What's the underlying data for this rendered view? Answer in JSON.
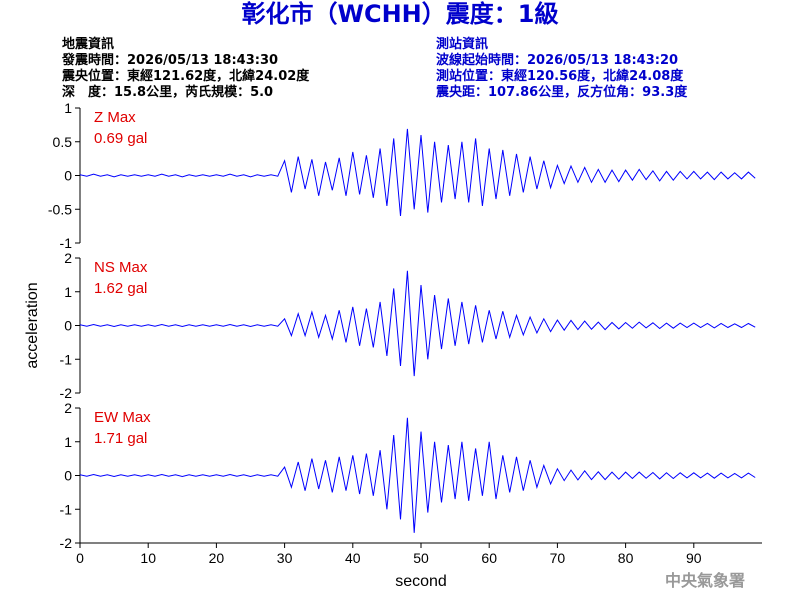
{
  "header": {
    "title": "彰化市（WCHH）震度：1級",
    "left": [
      "地震資訊",
      "發震時間：2026/05/13 18:43:30",
      "震央位置：東經121.62度，北緯24.02度",
      "深　度：15.8公里，芮氏規模：5.0"
    ],
    "right": [
      "測站資訊",
      "波線起始時間：2026/05/13 18:43:20",
      "測站位置：東經120.56度，北緯24.08度",
      "震央距：107.86公里，反方位角：93.3度"
    ]
  },
  "footer": "中央氣象署",
  "chart_data": [
    {
      "type": "line",
      "annotations": [
        "Z Max",
        "0.69 gal"
      ],
      "color": "#0000ff",
      "xlim": [
        0,
        100
      ],
      "ylim": [
        -1,
        1
      ],
      "yticks": [
        1,
        0.5,
        0,
        -0.5,
        -1
      ],
      "x": [
        0,
        1,
        2,
        3,
        4,
        5,
        6,
        7,
        8,
        9,
        10,
        11,
        12,
        13,
        14,
        15,
        16,
        17,
        18,
        19,
        20,
        21,
        22,
        23,
        24,
        25,
        26,
        27,
        28,
        29,
        30,
        31,
        32,
        33,
        34,
        35,
        36,
        37,
        38,
        39,
        40,
        41,
        42,
        43,
        44,
        45,
        46,
        47,
        48,
        49,
        50,
        51,
        52,
        53,
        54,
        55,
        56,
        57,
        58,
        59,
        60,
        61,
        62,
        63,
        64,
        65,
        66,
        67,
        68,
        69,
        70,
        71,
        72,
        73,
        74,
        75,
        76,
        77,
        78,
        79,
        80,
        81,
        82,
        83,
        84,
        85,
        86,
        87,
        88,
        89,
        90,
        91,
        92,
        93,
        94,
        95,
        96,
        97,
        98,
        99
      ],
      "values": [
        0.01,
        -0.01,
        0.02,
        -0.01,
        0.01,
        -0.02,
        0.01,
        -0.01,
        0.01,
        -0.01,
        0.01,
        -0.01,
        0.02,
        -0.01,
        0.01,
        -0.02,
        0.01,
        -0.01,
        0.01,
        -0.01,
        0.01,
        -0.01,
        0.02,
        -0.01,
        0.01,
        -0.02,
        0.01,
        -0.01,
        0.01,
        -0.01,
        0.22,
        -0.25,
        0.28,
        -0.2,
        0.24,
        -0.3,
        0.2,
        -0.22,
        0.26,
        -0.3,
        0.35,
        -0.28,
        0.3,
        -0.33,
        0.4,
        -0.45,
        0.55,
        -0.6,
        0.69,
        -0.5,
        0.6,
        -0.55,
        0.5,
        -0.4,
        0.45,
        -0.35,
        0.5,
        -0.4,
        0.55,
        -0.45,
        0.4,
        -0.35,
        0.38,
        -0.3,
        0.32,
        -0.25,
        0.28,
        -0.2,
        0.22,
        -0.18,
        0.15,
        -0.12,
        0.14,
        -0.1,
        0.12,
        -0.1,
        0.09,
        -0.1,
        0.08,
        -0.09,
        0.08,
        -0.07,
        0.09,
        -0.06,
        0.07,
        -0.08,
        0.06,
        -0.07,
        0.06,
        -0.05,
        0.06,
        -0.05,
        0.05,
        -0.06,
        0.05,
        -0.05,
        0.04,
        -0.05,
        0.05,
        -0.04
      ]
    },
    {
      "type": "line",
      "annotations": [
        "NS Max",
        "1.62 gal"
      ],
      "ylabel": "acceleration",
      "color": "#0000ff",
      "xlim": [
        0,
        100
      ],
      "ylim": [
        -2,
        2
      ],
      "yticks": [
        2,
        1,
        0,
        -1,
        -2
      ],
      "x": [
        0,
        1,
        2,
        3,
        4,
        5,
        6,
        7,
        8,
        9,
        10,
        11,
        12,
        13,
        14,
        15,
        16,
        17,
        18,
        19,
        20,
        21,
        22,
        23,
        24,
        25,
        26,
        27,
        28,
        29,
        30,
        31,
        32,
        33,
        34,
        35,
        36,
        37,
        38,
        39,
        40,
        41,
        42,
        43,
        44,
        45,
        46,
        47,
        48,
        49,
        50,
        51,
        52,
        53,
        54,
        55,
        56,
        57,
        58,
        59,
        60,
        61,
        62,
        63,
        64,
        65,
        66,
        67,
        68,
        69,
        70,
        71,
        72,
        73,
        74,
        75,
        76,
        77,
        78,
        79,
        80,
        81,
        82,
        83,
        84,
        85,
        86,
        87,
        88,
        89,
        90,
        91,
        92,
        93,
        94,
        95,
        96,
        97,
        98,
        99
      ],
      "values": [
        0.02,
        -0.02,
        0.03,
        -0.02,
        0.02,
        -0.03,
        0.02,
        -0.02,
        0.02,
        -0.02,
        0.02,
        -0.02,
        0.03,
        -0.02,
        0.02,
        -0.03,
        0.02,
        -0.02,
        0.02,
        -0.02,
        0.02,
        -0.02,
        0.03,
        -0.02,
        0.02,
        -0.03,
        0.02,
        -0.02,
        0.02,
        -0.02,
        0.2,
        -0.3,
        0.35,
        -0.3,
        0.4,
        -0.35,
        0.3,
        -0.4,
        0.45,
        -0.5,
        0.55,
        -0.6,
        0.5,
        -0.65,
        0.7,
        -0.9,
        1.1,
        -1.2,
        1.62,
        -1.5,
        1.2,
        -1.0,
        0.9,
        -0.7,
        0.8,
        -0.6,
        0.7,
        -0.55,
        0.6,
        -0.5,
        0.45,
        -0.4,
        0.42,
        -0.35,
        0.3,
        -0.28,
        0.25,
        -0.22,
        0.2,
        -0.18,
        0.16,
        -0.14,
        0.15,
        -0.12,
        0.13,
        -0.11,
        0.1,
        -0.12,
        0.09,
        -0.1,
        0.09,
        -0.08,
        0.1,
        -0.07,
        0.08,
        -0.09,
        0.07,
        -0.08,
        0.07,
        -0.06,
        0.07,
        -0.06,
        0.06,
        -0.07,
        0.06,
        -0.06,
        0.05,
        -0.06,
        0.06,
        -0.05
      ]
    },
    {
      "type": "line",
      "annotations": [
        "EW Max",
        "1.71 gal"
      ],
      "xlabel": "second",
      "color": "#0000ff",
      "xlim": [
        0,
        100
      ],
      "ylim": [
        -2,
        2
      ],
      "yticks": [
        2,
        1,
        0,
        -1,
        -2
      ],
      "xticks": [
        0,
        10,
        20,
        30,
        40,
        50,
        60,
        70,
        80,
        90
      ],
      "x": [
        0,
        1,
        2,
        3,
        4,
        5,
        6,
        7,
        8,
        9,
        10,
        11,
        12,
        13,
        14,
        15,
        16,
        17,
        18,
        19,
        20,
        21,
        22,
        23,
        24,
        25,
        26,
        27,
        28,
        29,
        30,
        31,
        32,
        33,
        34,
        35,
        36,
        37,
        38,
        39,
        40,
        41,
        42,
        43,
        44,
        45,
        46,
        47,
        48,
        49,
        50,
        51,
        52,
        53,
        54,
        55,
        56,
        57,
        58,
        59,
        60,
        61,
        62,
        63,
        64,
        65,
        66,
        67,
        68,
        69,
        70,
        71,
        72,
        73,
        74,
        75,
        76,
        77,
        78,
        79,
        80,
        81,
        82,
        83,
        84,
        85,
        86,
        87,
        88,
        89,
        90,
        91,
        92,
        93,
        94,
        95,
        96,
        97,
        98,
        99
      ],
      "values": [
        0.02,
        -0.02,
        0.03,
        -0.02,
        0.02,
        -0.03,
        0.02,
        -0.02,
        0.02,
        -0.02,
        0.02,
        -0.02,
        0.03,
        -0.02,
        0.02,
        -0.03,
        0.02,
        -0.02,
        0.02,
        -0.02,
        0.02,
        -0.02,
        0.03,
        -0.02,
        0.02,
        -0.03,
        0.02,
        -0.02,
        0.02,
        -0.02,
        0.25,
        -0.35,
        0.4,
        -0.45,
        0.5,
        -0.4,
        0.45,
        -0.5,
        0.55,
        -0.45,
        0.6,
        -0.55,
        0.65,
        -0.6,
        0.75,
        -1.0,
        1.2,
        -1.3,
        1.71,
        -1.7,
        1.3,
        -1.1,
        1.0,
        -0.8,
        0.9,
        -0.7,
        1.0,
        -0.75,
        0.8,
        -0.6,
        1.0,
        -0.7,
        0.6,
        -0.5,
        0.55,
        -0.45,
        0.45,
        -0.35,
        0.3,
        -0.25,
        0.2,
        -0.15,
        0.16,
        -0.13,
        0.14,
        -0.12,
        0.11,
        -0.12,
        0.1,
        -0.11,
        0.1,
        -0.09,
        0.1,
        -0.08,
        0.09,
        -0.1,
        0.08,
        -0.09,
        0.08,
        -0.07,
        0.08,
        -0.07,
        0.07,
        -0.08,
        0.07,
        -0.07,
        0.06,
        -0.07,
        0.07,
        -0.06
      ]
    }
  ]
}
